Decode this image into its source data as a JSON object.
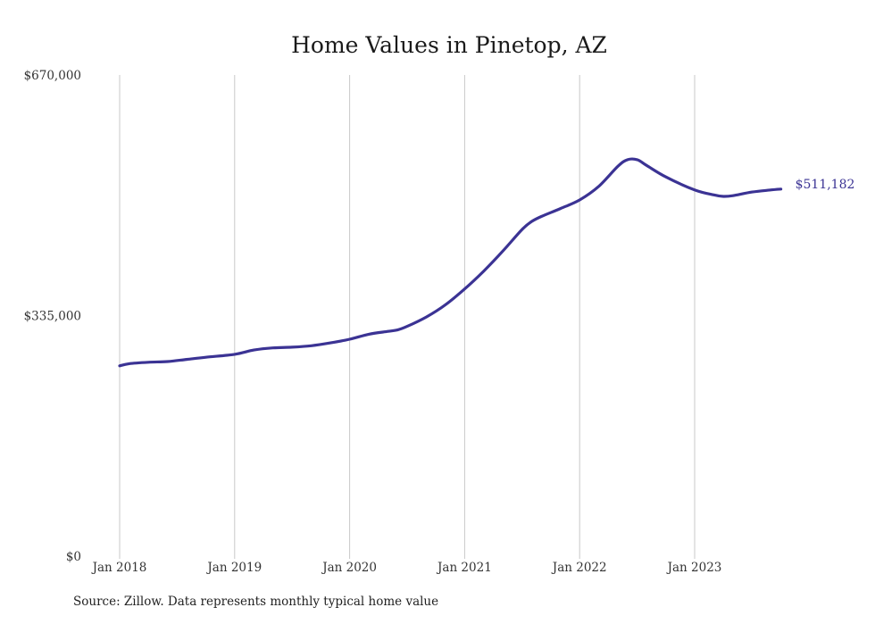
{
  "chart_data": {
    "type": "line",
    "title": "Home Values in Pinetop, AZ",
    "xlabel": "",
    "ylabel": "",
    "x_range": [
      "2018-01",
      "2023-10"
    ],
    "ylim": [
      0,
      670000
    ],
    "y_ticks": [
      {
        "value": 0,
        "label": "$0"
      },
      {
        "value": 335000,
        "label": "$335,000"
      },
      {
        "value": 670000,
        "label": "$670,000"
      }
    ],
    "x_ticks": [
      {
        "date": "2018-01",
        "label": "Jan 2018"
      },
      {
        "date": "2019-01",
        "label": "Jan 2019"
      },
      {
        "date": "2020-01",
        "label": "Jan 2020"
      },
      {
        "date": "2021-01",
        "label": "Jan 2021"
      },
      {
        "date": "2022-01",
        "label": "Jan 2022"
      },
      {
        "date": "2023-01",
        "label": "Jan 2023"
      }
    ],
    "grid": "vertical",
    "series": [
      {
        "color": "#3b3394",
        "end_label": "$511,182",
        "points": [
          {
            "x": "2018-01",
            "y": 265000
          },
          {
            "x": "2018-02",
            "y": 268000
          },
          {
            "x": "2018-04",
            "y": 270000
          },
          {
            "x": "2018-06",
            "y": 271000
          },
          {
            "x": "2018-08",
            "y": 274000
          },
          {
            "x": "2018-10",
            "y": 277000
          },
          {
            "x": "2019-01",
            "y": 281000
          },
          {
            "x": "2019-03",
            "y": 287000
          },
          {
            "x": "2019-05",
            "y": 290000
          },
          {
            "x": "2019-07",
            "y": 291000
          },
          {
            "x": "2019-09",
            "y": 293000
          },
          {
            "x": "2019-11",
            "y": 297000
          },
          {
            "x": "2020-01",
            "y": 302000
          },
          {
            "x": "2020-03",
            "y": 309000
          },
          {
            "x": "2020-05",
            "y": 313000
          },
          {
            "x": "2020-06",
            "y": 315000
          },
          {
            "x": "2020-07",
            "y": 320000
          },
          {
            "x": "2020-09",
            "y": 333000
          },
          {
            "x": "2020-11",
            "y": 350000
          },
          {
            "x": "2021-01",
            "y": 372000
          },
          {
            "x": "2021-03",
            "y": 397000
          },
          {
            "x": "2021-05",
            "y": 425000
          },
          {
            "x": "2021-07",
            "y": 455000
          },
          {
            "x": "2021-08",
            "y": 466000
          },
          {
            "x": "2021-09",
            "y": 473000
          },
          {
            "x": "2021-11",
            "y": 484000
          },
          {
            "x": "2022-01",
            "y": 496000
          },
          {
            "x": "2022-03",
            "y": 515000
          },
          {
            "x": "2022-05",
            "y": 543000
          },
          {
            "x": "2022-06",
            "y": 552000
          },
          {
            "x": "2022-07",
            "y": 552000
          },
          {
            "x": "2022-08",
            "y": 544000
          },
          {
            "x": "2022-10",
            "y": 528000
          },
          {
            "x": "2023-01",
            "y": 510000
          },
          {
            "x": "2023-03",
            "y": 503000
          },
          {
            "x": "2023-04",
            "y": 501000
          },
          {
            "x": "2023-05",
            "y": 502000
          },
          {
            "x": "2023-07",
            "y": 507000
          },
          {
            "x": "2023-09",
            "y": 510000
          },
          {
            "x": "2023-10",
            "y": 511182
          }
        ]
      }
    ],
    "source": "Source: Zillow. Data represents monthly typical home value"
  }
}
